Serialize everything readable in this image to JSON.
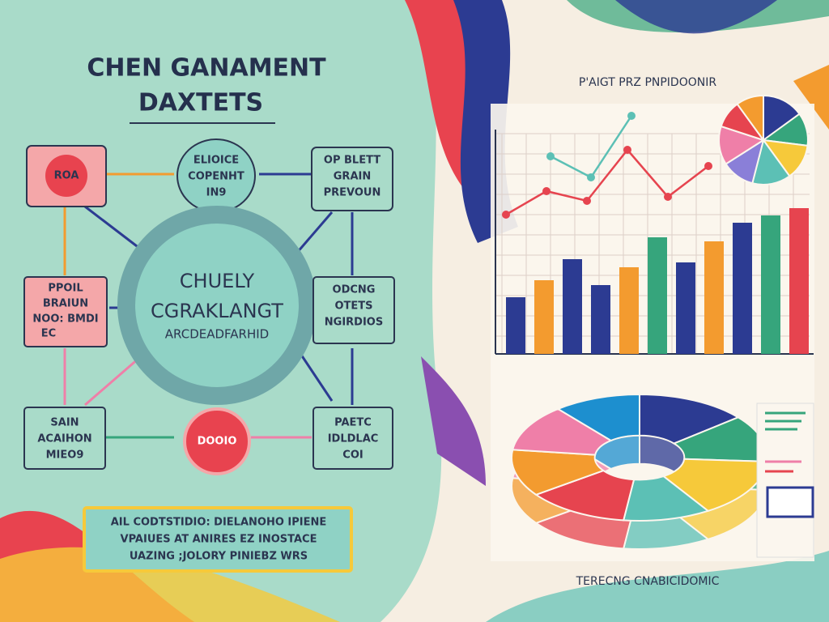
{
  "header": {
    "title": "CHEN GANAMENT",
    "subtitle": "DAXTETS"
  },
  "nodes": [
    {
      "lines": [
        "ROA"
      ]
    },
    {
      "lines": [
        "ELIOICE",
        "COPENHT",
        "IN9"
      ]
    },
    {
      "lines": [
        "OP BLETT",
        "GRAIN",
        "PREVOUN"
      ]
    },
    {
      "lines": [
        "PPOIL",
        "BRAIUN",
        "NOO: BMDI",
        "EC"
      ]
    },
    {
      "lines": [
        "CHUELY",
        "CGRAKLANGT",
        "ARCDEADFARHID"
      ]
    },
    {
      "lines": [
        "ODCNG",
        "OTETS",
        "NGIRDIOS"
      ]
    },
    {
      "lines": [
        "SAIN",
        "ACAIHON",
        "MIEO9"
      ]
    },
    {
      "lines": [
        "DOOIO"
      ]
    },
    {
      "lines": [
        "PAETC",
        "IDLDLAC",
        "COI"
      ]
    }
  ],
  "note": {
    "lines": [
      "AIL CODTSTIDIO: DIELANOHO IPIENE",
      "VPAIUES AT ANIRES EZ INOSTACE",
      "UAZING ;JOLORY   PINIEBZ  WRS"
    ]
  },
  "dashboard": {
    "title": "P'AIGT PRZ PNPIDOONIR",
    "caption": "TERECNG CNABICIDOMIC",
    "bar_chart": {
      "values": [
        70,
        91,
        117,
        85,
        107,
        144,
        113,
        139,
        162,
        171,
        180
      ],
      "colors": [
        "#2c3b92",
        "#f39b2f",
        "#2c3b92",
        "#2c3b92",
        "#f39b2f",
        "#36a57c",
        "#2c3b92",
        "#f39b2f",
        "#2c3b92",
        "#36a57c",
        "#e6444f"
      ]
    },
    "line_chart": {
      "series": [
        {
          "color": "#e6444f",
          "values": [
            172,
            201,
            189,
            252,
            194,
            232
          ]
        },
        {
          "color": "#5cc0b5",
          "values": [
            244,
            218,
            294
          ]
        }
      ]
    },
    "pie_chart": {
      "values": [
        15,
        12,
        13,
        14,
        12,
        14,
        10,
        10
      ],
      "colors": [
        "#2c3b92",
        "#36a57c",
        "#f6c93a",
        "#5cc0b5",
        "#8a7fd8",
        "#ef7fa8",
        "#e6444f",
        "#f39b2f"
      ]
    },
    "donut_chart": {
      "values": [
        14,
        12,
        15,
        11,
        13,
        12,
        12,
        11
      ],
      "colors": [
        "#2c3b92",
        "#36a57c",
        "#f6c93a",
        "#5cc0b5",
        "#e6444f",
        "#f39b2f",
        "#ef7fa8",
        "#1d8fcf"
      ]
    }
  }
}
